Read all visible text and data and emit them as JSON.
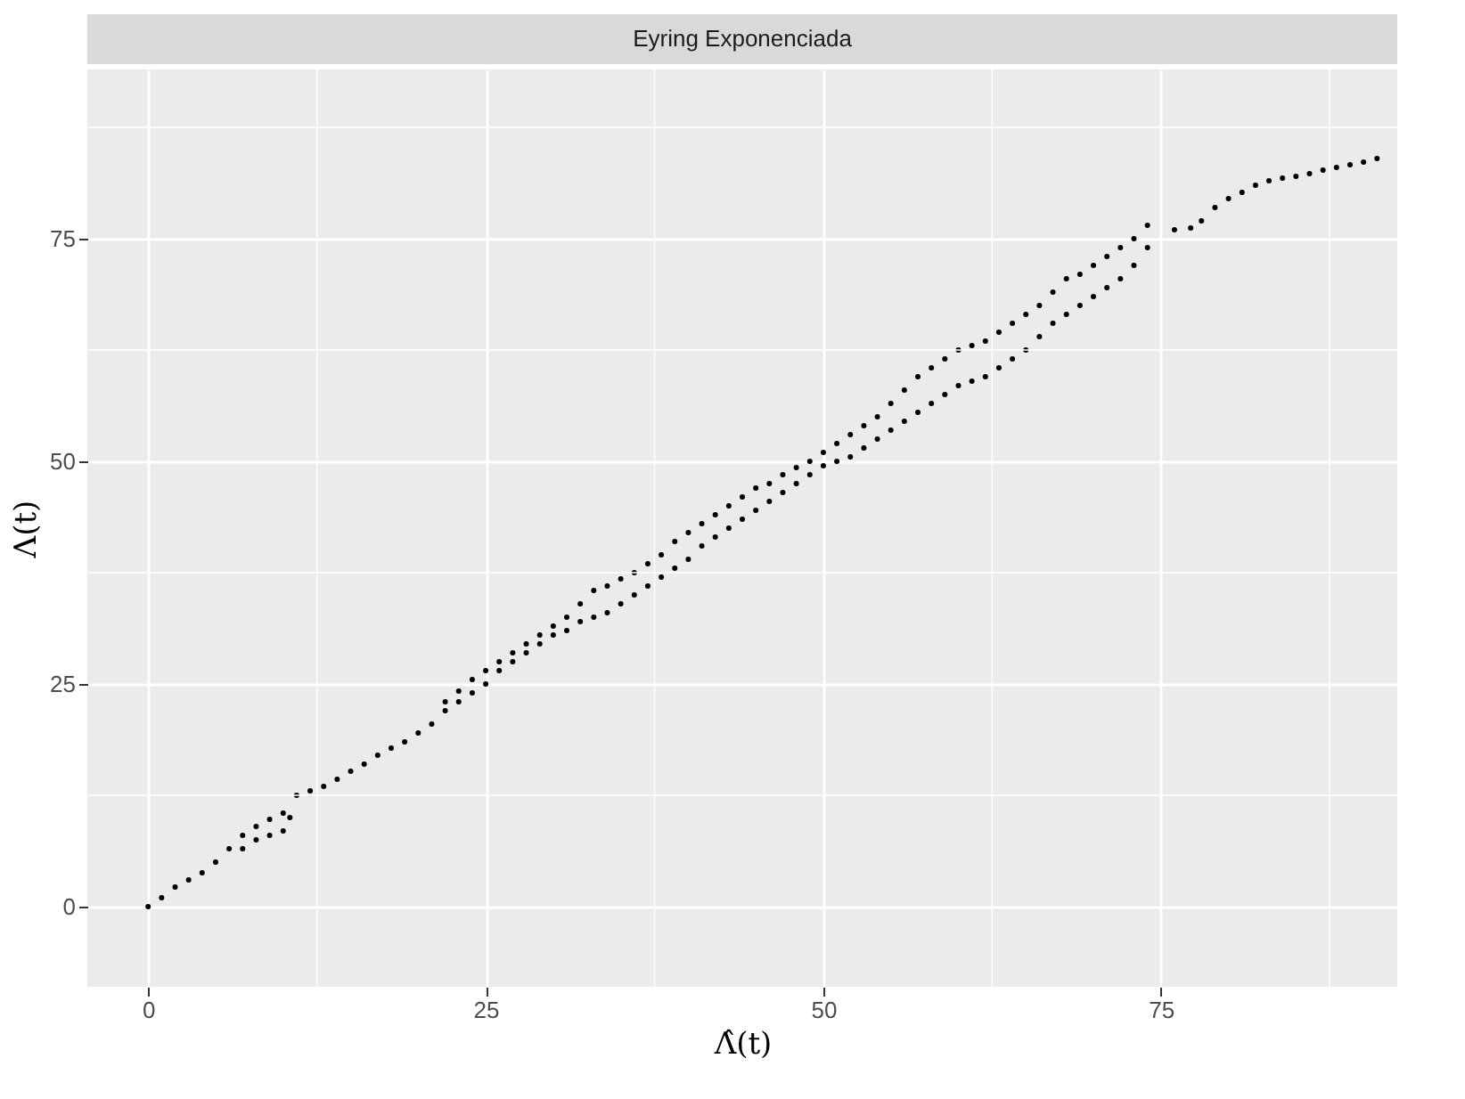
{
  "chart_data": {
    "type": "scatter",
    "title": "Eyring Exponenciada",
    "xlabel": "Λ̂(t)",
    "ylabel": "Λ(t)",
    "xlim": [
      -4.5,
      92.5
    ],
    "ylim": [
      -9,
      94
    ],
    "xticks": [
      0,
      25,
      50,
      75
    ],
    "yticks": [
      0,
      25,
      50,
      75
    ],
    "grid": true,
    "series": [
      {
        "color": "#000000",
        "x": [
          0,
          1,
          2,
          3,
          4,
          5,
          6,
          7,
          8,
          9,
          10,
          11,
          12,
          7,
          8,
          9,
          10,
          10.5,
          13,
          14,
          15,
          16,
          17,
          18,
          19,
          20,
          21,
          22,
          23,
          24,
          25,
          26,
          27,
          28,
          29,
          30,
          31,
          32,
          33,
          34,
          35,
          36,
          37,
          38,
          39,
          40,
          41,
          42,
          43,
          44,
          45,
          46,
          47,
          48,
          49,
          50,
          51,
          52,
          53,
          54,
          55,
          56,
          57,
          58,
          59,
          60,
          61,
          62,
          63,
          64,
          65,
          66,
          67,
          68,
          69,
          70,
          71,
          72,
          73,
          74,
          22,
          23,
          24,
          25,
          26,
          27,
          28,
          29,
          30,
          31,
          32,
          33,
          34,
          35,
          36,
          37,
          38,
          39,
          40,
          41,
          42,
          43,
          44,
          45,
          46,
          47,
          48,
          49,
          50,
          51,
          52,
          53,
          54,
          55,
          56,
          57,
          58,
          59,
          60,
          61,
          62,
          63,
          64,
          65,
          66,
          67,
          68,
          69,
          70,
          71,
          72,
          73,
          74,
          76,
          77.2,
          78,
          79,
          80,
          81,
          82,
          83,
          84,
          85,
          86,
          87,
          88,
          89,
          90,
          91
        ],
        "values": [
          0,
          1,
          2.2,
          3,
          3.8,
          5,
          6.5,
          8,
          9,
          9.8,
          10.5,
          12.5,
          13,
          6.5,
          7.5,
          8,
          8.5,
          10,
          13.5,
          14.3,
          15.2,
          16,
          17,
          17.8,
          18.5,
          19.5,
          20.5,
          23,
          24.2,
          25.5,
          26.5,
          27.5,
          28.5,
          29.5,
          30.5,
          31.5,
          32.5,
          34,
          35.5,
          36,
          36.8,
          37.5,
          38.5,
          39.5,
          41,
          42,
          43,
          44,
          45,
          46,
          47,
          47.5,
          48.5,
          49.3,
          50,
          51,
          52,
          53,
          54,
          55,
          56.5,
          58,
          59.5,
          60.5,
          61.5,
          62.5,
          63,
          63.5,
          64.5,
          65.5,
          66.5,
          67.5,
          69,
          70.5,
          71,
          72,
          73,
          74,
          75,
          76.5,
          22,
          23,
          24,
          25,
          26.5,
          27.5,
          28.5,
          29.5,
          30.5,
          31,
          32,
          32.5,
          33,
          34,
          35,
          36,
          37,
          38,
          39,
          40.5,
          41.5,
          42.5,
          43.5,
          44.5,
          45.5,
          46.5,
          47.5,
          48.5,
          49.5,
          50,
          50.5,
          51.5,
          52.5,
          53.5,
          54.5,
          55.5,
          56.5,
          57.5,
          58.5,
          59,
          59.5,
          60.5,
          61.5,
          62.5,
          64,
          65.5,
          66.5,
          67.5,
          68.5,
          69.5,
          70.5,
          72,
          74,
          76,
          76.2,
          77,
          78.5,
          79.5,
          80.2,
          81,
          81.5,
          81.8,
          82,
          82.3,
          82.7,
          83,
          83.3,
          83.6,
          84
        ]
      }
    ]
  }
}
